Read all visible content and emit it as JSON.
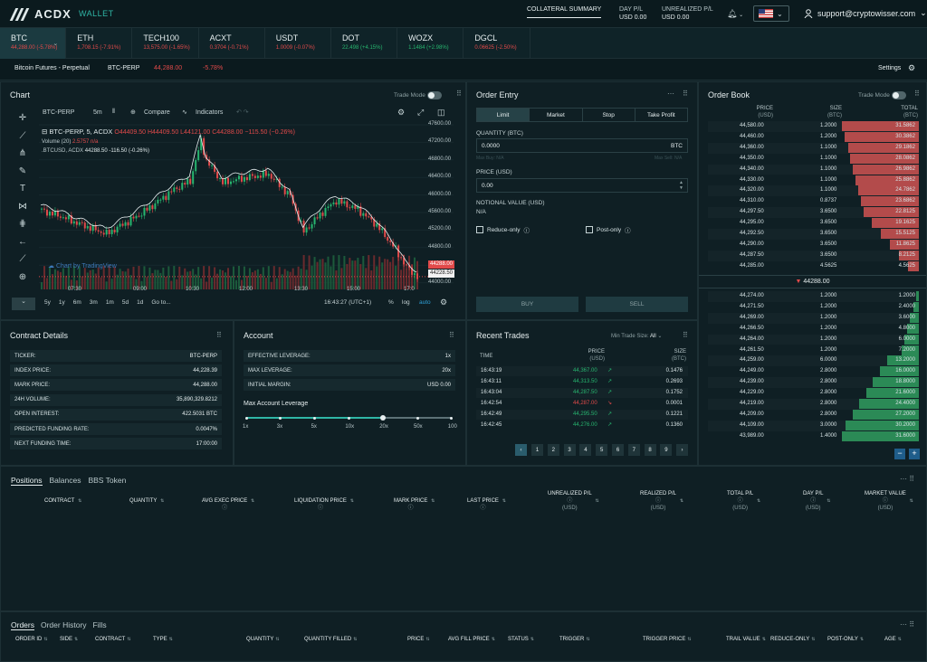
{
  "brand": "ACDX",
  "nav": {
    "wallet": "WALLET",
    "collateral": "COLLATERAL SUMMARY",
    "day_pl_label": "DAY P/L",
    "day_pl_value": "USD 0.00",
    "unreal_label": "UNREALIZED P/L",
    "unreal_value": "USD 0.00",
    "user": "support@cryptowisser.com"
  },
  "tickers": [
    {
      "name": "BTC",
      "price": "44,288.00 (-5.78%)",
      "dir": "down"
    },
    {
      "name": "ETH",
      "price": "1,708.15 (-7.91%)",
      "dir": "down"
    },
    {
      "name": "TECH100",
      "price": "13,575.00 (-1.65%)",
      "dir": "down"
    },
    {
      "name": "ACXT",
      "price": "0.3704 (-0.71%)",
      "dir": "down"
    },
    {
      "name": "USDT",
      "price": "1.0009 (-0.07%)",
      "dir": "down"
    },
    {
      "name": "DOT",
      "price": "22.498 (+4.15%)",
      "dir": "up"
    },
    {
      "name": "WOZX",
      "price": "1.1484 (+2.98%)",
      "dir": "up"
    },
    {
      "name": "DGCL",
      "price": "0.06625 (-2.50%)",
      "dir": "down"
    }
  ],
  "subbar": {
    "instrument": "Bitcoin Futures - Perpetual",
    "symbol": "BTC-PERP",
    "price": "44,288.00",
    "change": "-5.78%",
    "settings": "Settings"
  },
  "chart": {
    "title": "Chart",
    "trade_mode": "Trade Mode",
    "symbol": "BTC-PERP",
    "interval": "5m",
    "compare": "Compare",
    "indicators": "Indicators",
    "legend": "BTC-PERP, 5, ACDX",
    "ohlc": "O44409.50 H44409.50 L44121.00 C44288.00 −115.50 (−0.26%)",
    "volume": "Volume (20)",
    "volume_val": "2.5757  n/a",
    "compare_sym": ".BTCUSD, ACDX",
    "compare_val": "44288.50  -116.50  (-0.26%)",
    "watermark": "Chart by TradingView",
    "last_price_tag": "44288.00",
    "last_price_tag2": "44228.50",
    "yticks": [
      "47600.00",
      "47200.00",
      "46800.00",
      "46400.00",
      "46000.00",
      "45600.00",
      "45200.00",
      "44800.00",
      "44400.00",
      "44000.00"
    ],
    "xticks": [
      "07:30",
      "09:00",
      "10:30",
      "12:00",
      "13:30",
      "15:00",
      "17:0"
    ],
    "ranges": [
      "5y",
      "1y",
      "6m",
      "3m",
      "1m",
      "5d",
      "1d",
      "Go to..."
    ],
    "time": "16:43:27 (UTC+1)",
    "pct": "%",
    "log": "log",
    "auto": "auto"
  },
  "order_entry": {
    "title": "Order Entry",
    "tabs": [
      "Limit",
      "Market",
      "Stop",
      "Take Profit"
    ],
    "qty_label": "QUANTITY (BTC)",
    "qty_value": "0.0000",
    "qty_unit": "BTC",
    "max_buy": "Max Buy: N/A",
    "max_sell": "Max Sell: N/A",
    "price_label": "PRICE (USD)",
    "price_value": "0.00",
    "notional_label": "NOTIONAL VALUE (USD)",
    "notional_value": "N/A",
    "reduce_only": "Reduce-only",
    "post_only": "Post-only",
    "buy": "BUY",
    "sell": "SELL"
  },
  "order_book": {
    "title": "Order Book",
    "trade_mode": "Trade Mode",
    "headers": {
      "price": "PRICE",
      "price_unit": "(USD)",
      "size": "SIZE",
      "size_unit": "(BTC)",
      "total": "TOTAL",
      "total_unit": "(BTC)"
    },
    "asks": [
      [
        "44,580.00",
        "1.2000",
        "31.5862"
      ],
      [
        "44,460.00",
        "1.2000",
        "30.3862"
      ],
      [
        "44,360.00",
        "1.1000",
        "29.1862"
      ],
      [
        "44,350.00",
        "1.1000",
        "28.0862"
      ],
      [
        "44,340.00",
        "1.1000",
        "26.9862"
      ],
      [
        "44,330.00",
        "1.1000",
        "25.8862"
      ],
      [
        "44,320.00",
        "1.1000",
        "24.7862"
      ],
      [
        "44,310.00",
        "0.8737",
        "23.6862"
      ],
      [
        "44,297.50",
        "3.6500",
        "22.8125"
      ],
      [
        "44,295.00",
        "3.6500",
        "19.1625"
      ],
      [
        "44,292.50",
        "3.6500",
        "15.5125"
      ],
      [
        "44,290.00",
        "3.6500",
        "11.8625"
      ],
      [
        "44,287.50",
        "3.6500",
        "8.2125"
      ],
      [
        "44,285.00",
        "4.5625",
        "4.5625"
      ]
    ],
    "mid": "44288.00",
    "bids": [
      [
        "44,274.00",
        "1.2000",
        "1.2000"
      ],
      [
        "44,271.50",
        "1.2000",
        "2.4000"
      ],
      [
        "44,269.00",
        "1.2000",
        "3.6000"
      ],
      [
        "44,266.50",
        "1.2000",
        "4.8000"
      ],
      [
        "44,264.00",
        "1.2000",
        "6.0000"
      ],
      [
        "44,261.50",
        "1.2000",
        "7.2000"
      ],
      [
        "44,259.00",
        "6.0000",
        "13.2000"
      ],
      [
        "44,249.00",
        "2.8000",
        "16.0000"
      ],
      [
        "44,239.00",
        "2.8000",
        "18.8000"
      ],
      [
        "44,229.00",
        "2.8000",
        "21.6000"
      ],
      [
        "44,219.00",
        "2.8000",
        "24.4000"
      ],
      [
        "44,209.00",
        "2.8000",
        "27.2000"
      ],
      [
        "44,109.00",
        "3.0000",
        "30.2000"
      ],
      [
        "43,989.00",
        "1.4000",
        "31.6000"
      ]
    ],
    "minus": "−",
    "plus": "+"
  },
  "contract": {
    "title": "Contract Details",
    "rows": [
      [
        "TICKER:",
        "BTC-PERP"
      ],
      [
        "INDEX PRICE:",
        "44,228.39"
      ],
      [
        "MARK PRICE:",
        "44,288.00"
      ],
      [
        "24H VOLUME:",
        "35,890,329.8212"
      ],
      [
        "OPEN INTEREST:",
        "422.5031 BTC"
      ],
      [
        "PREDICTED FUNDING RATE:",
        "0.0047%"
      ],
      [
        "NEXT FUNDING TIME:",
        "17:00:00"
      ]
    ]
  },
  "account": {
    "title": "Account",
    "rows": [
      [
        "EFFECTIVE LEVERAGE:",
        "1x"
      ],
      [
        "MAX LEVERAGE:",
        "20x"
      ],
      [
        "INITIAL MARGIN:",
        "USD 0.00"
      ]
    ],
    "lev_label": "Max Account Leverage",
    "lev_ticks": [
      "1x",
      "3x",
      "5x",
      "10x",
      "20x",
      "50x",
      "100"
    ],
    "lev_selected": "20x"
  },
  "recent": {
    "title": "Recent Trades",
    "min_label": "Min Trade Size:",
    "min_value": "All",
    "headers": {
      "time": "TIME",
      "price": "PRICE",
      "price_unit": "(USD)",
      "size": "SIZE",
      "size_unit": "(BTC)"
    },
    "rows": [
      [
        "16:43:19",
        "44,367.00",
        "0.1476",
        "up"
      ],
      [
        "16:43:11",
        "44,313.50",
        "0.2693",
        "up"
      ],
      [
        "16:43:04",
        "44,287.50",
        "0.1752",
        "up"
      ],
      [
        "16:42:54",
        "44,287.00",
        "0.0001",
        "down"
      ],
      [
        "16:42:49",
        "44,295.50",
        "0.1221",
        "up"
      ],
      [
        "16:42:45",
        "44,276.00",
        "0.1360",
        "up"
      ]
    ],
    "pages": [
      "1",
      "2",
      "3",
      "4",
      "5",
      "6",
      "7",
      "8",
      "9"
    ]
  },
  "positions": {
    "tabs": [
      "Positions",
      "Balances",
      "BBS Token"
    ],
    "columns": [
      "CONTRACT",
      "QUANTITY",
      "AVG EXEC PRICE",
      "LIQUIDATION PRICE",
      "MARK PRICE",
      "LAST PRICE",
      "UNREALIZED P/L",
      "REALIZED P/L",
      "TOTAL P/L",
      "DAY P/L",
      "MARKET VALUE"
    ],
    "unit": "(USD)"
  },
  "orders": {
    "tabs": [
      "Orders",
      "Order History",
      "Fills"
    ],
    "columns": [
      "ORDER ID",
      "SIDE",
      "CONTRACT",
      "TYPE",
      "QUANTITY",
      "QUANTITY FILLED",
      "PRICE",
      "AVG FILL PRICE",
      "STATUS",
      "TRIGGER",
      "TRIGGER PRICE",
      "TRAIL VALUE",
      "REDUCE-ONLY",
      "POST-ONLY",
      "AGE"
    ]
  }
}
